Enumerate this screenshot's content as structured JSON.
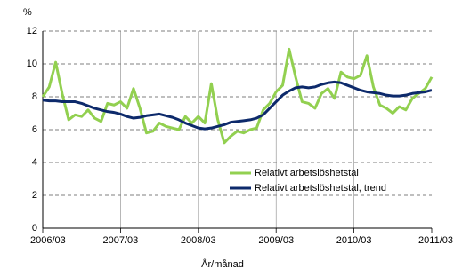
{
  "chart_data": {
    "type": "line",
    "y_label": "%",
    "x_label": "År/månad",
    "categories": [
      "2006/03",
      null,
      null,
      null,
      null,
      null,
      null,
      null,
      null,
      null,
      null,
      null,
      "2007/03",
      null,
      null,
      null,
      null,
      null,
      null,
      null,
      null,
      null,
      null,
      null,
      "2008/03",
      null,
      null,
      null,
      null,
      null,
      null,
      null,
      null,
      null,
      null,
      null,
      "2009/03",
      null,
      null,
      null,
      null,
      null,
      null,
      null,
      null,
      null,
      null,
      null,
      "2010/03",
      null,
      null,
      null,
      null,
      null,
      null,
      null,
      null,
      null,
      null,
      null,
      "2011/03"
    ],
    "series": [
      {
        "name": "Relativt arbetslöshetstal",
        "color": "#92d050",
        "width": 3,
        "values": [
          8.0,
          8.6,
          10.1,
          8.2,
          6.6,
          6.9,
          6.8,
          7.2,
          6.7,
          6.5,
          7.6,
          7.5,
          7.7,
          7.3,
          8.5,
          7.3,
          5.8,
          5.9,
          6.4,
          6.2,
          6.1,
          6.0,
          6.8,
          6.4,
          6.8,
          6.4,
          8.8,
          6.6,
          5.2,
          5.6,
          5.9,
          5.8,
          6.0,
          6.1,
          7.2,
          7.6,
          8.3,
          8.7,
          10.9,
          9.2,
          7.7,
          7.6,
          7.3,
          8.2,
          8.5,
          7.9,
          9.5,
          9.2,
          9.1,
          9.3,
          10.5,
          8.6,
          7.5,
          7.3,
          7.0,
          7.4,
          7.2,
          7.9,
          8.2,
          8.5,
          9.2
        ]
      },
      {
        "name": "Relativt arbetslöshetstal, trend",
        "color": "#0d2a6b",
        "width": 3,
        "values": [
          7.8,
          7.75,
          7.75,
          7.7,
          7.7,
          7.7,
          7.6,
          7.45,
          7.3,
          7.2,
          7.1,
          7.05,
          6.95,
          6.8,
          6.7,
          6.75,
          6.85,
          6.9,
          6.95,
          6.85,
          6.75,
          6.6,
          6.4,
          6.25,
          6.1,
          6.05,
          6.1,
          6.2,
          6.3,
          6.45,
          6.5,
          6.55,
          6.6,
          6.7,
          6.9,
          7.3,
          7.7,
          8.1,
          8.35,
          8.55,
          8.6,
          8.55,
          8.6,
          8.75,
          8.85,
          8.9,
          8.85,
          8.7,
          8.55,
          8.4,
          8.3,
          8.25,
          8.2,
          8.1,
          8.05,
          8.05,
          8.1,
          8.2,
          8.25,
          8.3,
          8.4
        ]
      }
    ],
    "ylim": [
      0,
      12
    ],
    "yticks": [
      0,
      2,
      4,
      6,
      8,
      10,
      12
    ],
    "grid": true
  }
}
